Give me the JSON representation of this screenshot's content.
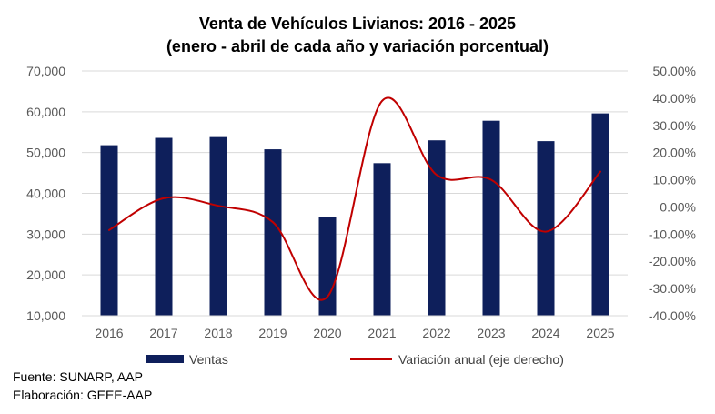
{
  "chart_data": {
    "type": "bar",
    "title": "Venta de Vehículos Livianos: 2016 - 2025",
    "subtitle": "(enero - abril de cada año y variación porcentual)",
    "categories": [
      "2016",
      "2017",
      "2018",
      "2019",
      "2020",
      "2021",
      "2022",
      "2023",
      "2024",
      "2025"
    ],
    "series": [
      {
        "name": "Ventas",
        "type": "bar",
        "axis": "left",
        "color": "#0e1f5b",
        "values": [
          51800,
          53600,
          53800,
          50800,
          34100,
          47400,
          53000,
          57800,
          52800,
          59600
        ]
      },
      {
        "name": "Variación anual (eje derecho)",
        "type": "line",
        "axis": "right",
        "color": "#c00000",
        "values": [
          -8.5,
          3.2,
          0.4,
          -5.6,
          -33.0,
          39.0,
          11.8,
          10.0,
          -9.1,
          13.0
        ]
      }
    ],
    "y_left": {
      "ylim": [
        10000,
        70000
      ],
      "ticks": [
        "10,000",
        "20,000",
        "30,000",
        "40,000",
        "50,000",
        "60,000",
        "70,000"
      ]
    },
    "y_right": {
      "ylim": [
        -40,
        50
      ],
      "ticks": [
        "-40.00%",
        "-30.00%",
        "-20.00%",
        "-10.00%",
        "0.00%",
        "10.00%",
        "20.00%",
        "30.00%",
        "40.00%",
        "50.00%"
      ]
    },
    "grid": true,
    "legend": "bottom"
  },
  "footer": {
    "source": "Fuente: SUNARP, AAP",
    "credit": "Elaboración: GEEE-AAP"
  }
}
